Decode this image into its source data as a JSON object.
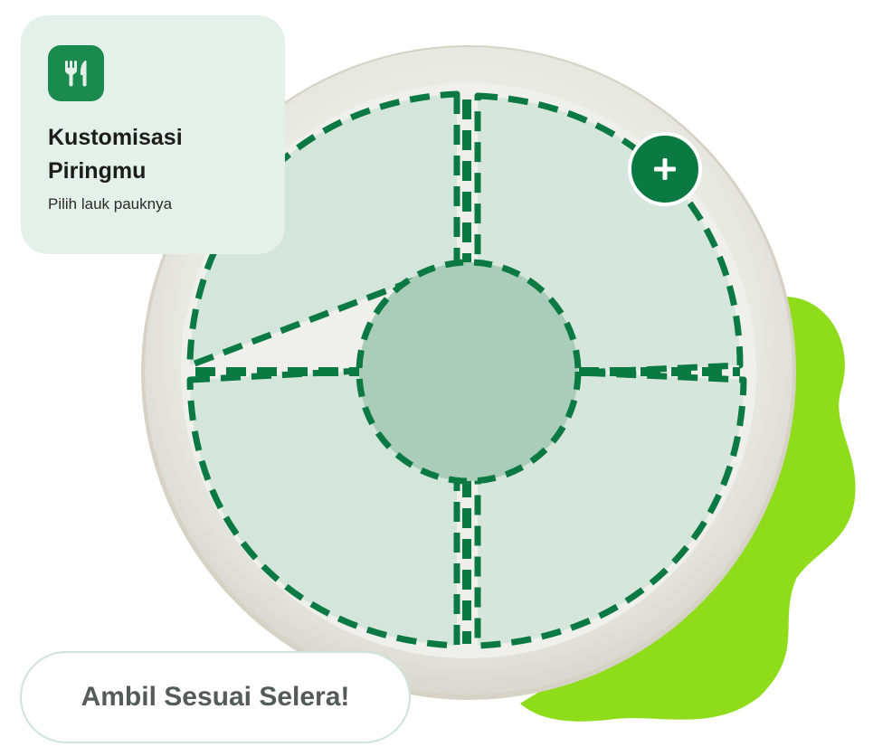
{
  "card": {
    "icon": "fork-knife-icon",
    "title": "Kustomisasi Piringmu",
    "subtitle": "Pilih lauk pauknya"
  },
  "plate": {
    "add_icon": "plus-icon"
  },
  "cta": {
    "label": "Ambil Sesuai Selera!"
  },
  "colors": {
    "brand_green": "#0b7a42",
    "accent_lime": "#8fdc1b",
    "card_bg": "#e4f1ea",
    "section_fill": "#cfe3d8",
    "center_fill": "#a9cdb8"
  }
}
